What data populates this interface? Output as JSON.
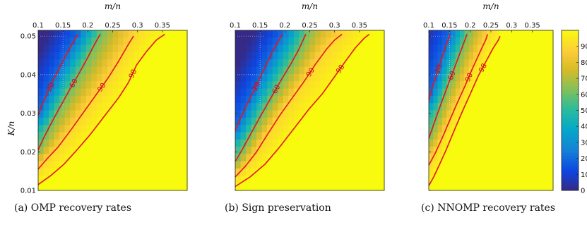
{
  "chart_data": {
    "type": "heatmap",
    "shared": {
      "xlabel": "m/n",
      "ylabel": "K/n",
      "x_ticks": [
        0.1,
        0.15,
        0.2,
        0.25,
        0.3,
        0.35
      ],
      "x_tick_labels": [
        "0.1",
        "0.15",
        "0.2",
        "0.25",
        "0.3",
        "0.35"
      ],
      "y_ticks": [
        0.01,
        0.02,
        0.03,
        0.04,
        0.05
      ],
      "y_tick_labels": [
        "0.01",
        "0.02",
        "0.03",
        "0.04",
        "0.05"
      ],
      "xlim": [
        0.1,
        0.4
      ],
      "ylim": [
        0.01,
        0.0515
      ],
      "colorbar": {
        "range": [
          0,
          100
        ],
        "ticks": [
          0,
          10,
          20,
          30,
          40,
          50,
          60,
          70,
          80,
          90
        ],
        "colormap": "parula"
      },
      "contour_color": "#e4151c"
    },
    "panels": [
      {
        "caption": "(a) OMP recovery rates",
        "contours": [
          {
            "level": 20,
            "label": "20",
            "points": [
              [
                0.1,
                0.0295
              ],
              [
                0.108,
                0.0322
              ],
              [
                0.118,
                0.0352
              ],
              [
                0.13,
                0.0385
              ],
              [
                0.142,
                0.0415
              ],
              [
                0.155,
                0.0448
              ],
              [
                0.168,
                0.0478
              ],
              [
                0.18,
                0.0505
              ]
            ]
          },
          {
            "level": 60,
            "label": "60",
            "points": [
              [
                0.1,
                0.0205
              ],
              [
                0.112,
                0.0238
              ],
              [
                0.128,
                0.0278
              ],
              [
                0.145,
                0.0318
              ],
              [
                0.162,
                0.0358
              ],
              [
                0.18,
                0.0398
              ],
              [
                0.198,
                0.044
              ],
              [
                0.212,
                0.0475
              ],
              [
                0.225,
                0.0505
              ]
            ]
          },
          {
            "level": 90,
            "label": "90",
            "points": [
              [
                0.1,
                0.0155
              ],
              [
                0.118,
                0.0182
              ],
              [
                0.14,
                0.0212
              ],
              [
                0.165,
                0.0255
              ],
              [
                0.19,
                0.03
              ],
              [
                0.215,
                0.0345
              ],
              [
                0.24,
                0.039
              ],
              [
                0.262,
                0.0435
              ],
              [
                0.28,
                0.0475
              ],
              [
                0.292,
                0.05
              ]
            ]
          },
          {
            "level": 98,
            "label": "98",
            "points": [
              [
                0.1,
                0.0115
              ],
              [
                0.125,
                0.0138
              ],
              [
                0.152,
                0.0168
              ],
              [
                0.178,
                0.0205
              ],
              [
                0.205,
                0.0245
              ],
              [
                0.235,
                0.0295
              ],
              [
                0.262,
                0.034
              ],
              [
                0.282,
                0.038
              ],
              [
                0.298,
                0.0425
              ],
              [
                0.318,
                0.046
              ],
              [
                0.338,
                0.049
              ],
              [
                0.355,
                0.0505
              ]
            ]
          }
        ]
      },
      {
        "caption": "(b) Sign preservation",
        "contours": [
          {
            "level": 20,
            "label": "20",
            "points": [
              [
                0.1,
                0.0255
              ],
              [
                0.11,
                0.0285
              ],
              [
                0.122,
                0.0318
              ],
              [
                0.135,
                0.0352
              ],
              [
                0.148,
                0.0388
              ],
              [
                0.162,
                0.0425
              ],
              [
                0.175,
                0.046
              ],
              [
                0.188,
                0.049
              ],
              [
                0.195,
                0.0505
              ]
            ]
          },
          {
            "level": 60,
            "label": "60",
            "points": [
              [
                0.1,
                0.0175
              ],
              [
                0.115,
                0.0208
              ],
              [
                0.132,
                0.0248
              ],
              [
                0.152,
                0.0295
              ],
              [
                0.172,
                0.034
              ],
              [
                0.192,
                0.0385
              ],
              [
                0.212,
                0.0428
              ],
              [
                0.228,
                0.0465
              ],
              [
                0.242,
                0.0505
              ]
            ]
          },
          {
            "level": 90,
            "label": "90",
            "points": [
              [
                0.1,
                0.0135
              ],
              [
                0.12,
                0.0162
              ],
              [
                0.142,
                0.0198
              ],
              [
                0.165,
                0.0245
              ],
              [
                0.19,
                0.0295
              ],
              [
                0.215,
                0.034
              ],
              [
                0.24,
                0.0385
              ],
              [
                0.262,
                0.0428
              ],
              [
                0.285,
                0.0468
              ],
              [
                0.3,
                0.049
              ],
              [
                0.315,
                0.0505
              ]
            ]
          },
          {
            "level": 98,
            "label": "98",
            "points": [
              [
                0.1,
                0.011
              ],
              [
                0.13,
                0.0135
              ],
              [
                0.16,
                0.0168
              ],
              [
                0.188,
                0.021
              ],
              [
                0.218,
                0.026
              ],
              [
                0.248,
                0.031
              ],
              [
                0.275,
                0.035
              ],
              [
                0.3,
                0.0395
              ],
              [
                0.322,
                0.0435
              ],
              [
                0.342,
                0.047
              ],
              [
                0.36,
                0.0495
              ],
              [
                0.37,
                0.0505
              ]
            ]
          }
        ]
      },
      {
        "caption": "(c) NNOMP recovery rates",
        "contours": [
          {
            "level": 20,
            "label": "20",
            "points": [
              [
                0.1,
                0.0335
              ],
              [
                0.108,
                0.0365
              ],
              [
                0.118,
                0.0398
              ],
              [
                0.128,
                0.0432
              ],
              [
                0.138,
                0.0465
              ],
              [
                0.148,
                0.0495
              ],
              [
                0.152,
                0.0505
              ]
            ]
          },
          {
            "level": 60,
            "label": "60",
            "points": [
              [
                0.1,
                0.0235
              ],
              [
                0.11,
                0.0265
              ],
              [
                0.122,
                0.0302
              ],
              [
                0.135,
                0.034
              ],
              [
                0.148,
                0.0378
              ],
              [
                0.162,
                0.0418
              ],
              [
                0.175,
                0.0455
              ],
              [
                0.188,
                0.0492
              ],
              [
                0.192,
                0.0505
              ]
            ]
          },
          {
            "level": 90,
            "label": "90",
            "points": [
              [
                0.1,
                0.0165
              ],
              [
                0.115,
                0.0195
              ],
              [
                0.132,
                0.0235
              ],
              [
                0.15,
                0.028
              ],
              [
                0.168,
                0.0325
              ],
              [
                0.188,
                0.0372
              ],
              [
                0.205,
                0.0415
              ],
              [
                0.222,
                0.0455
              ],
              [
                0.238,
                0.0492
              ],
              [
                0.242,
                0.0505
              ]
            ]
          },
          {
            "level": 98,
            "label": "98",
            "points": [
              [
                0.1,
                0.0112
              ],
              [
                0.112,
                0.0135
              ],
              [
                0.125,
                0.0165
              ],
              [
                0.142,
                0.0205
              ],
              [
                0.16,
                0.0252
              ],
              [
                0.18,
                0.0302
              ],
              [
                0.2,
                0.035
              ],
              [
                0.22,
                0.0398
              ],
              [
                0.24,
                0.0438
              ],
              [
                0.255,
                0.0468
              ],
              [
                0.268,
                0.049
              ],
              [
                0.272,
                0.05
              ]
            ]
          }
        ]
      }
    ]
  }
}
